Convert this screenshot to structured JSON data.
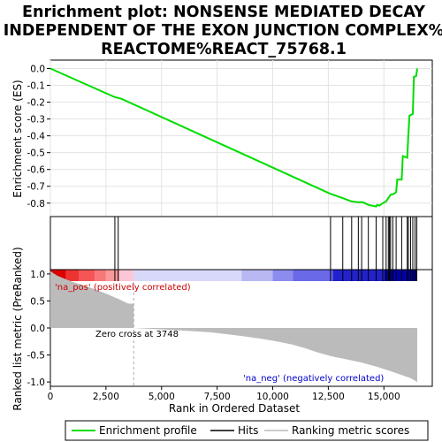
{
  "chart_data": {
    "type": "line",
    "title_lines": [
      "Enrichment plot: NONSENSE MEDIATED DECAY",
      "INDEPENDENT OF THE EXON JUNCTION COMPLEX%",
      "REACTOME%REACT_75768.1"
    ],
    "xlabel": "Rank in Ordered Dataset",
    "ylabel_top": "Enrichment score (ES)",
    "ylabel_bottom": "Ranked list metric (PreRanked)",
    "x_range": [
      0,
      16500
    ],
    "x_ticks": [
      0,
      2500,
      5000,
      7500,
      10000,
      12500,
      15000
    ],
    "x_tick_labels": [
      "0",
      "2,500",
      "5,000",
      "7,500",
      "10,000",
      "12,500",
      "15,000"
    ],
    "es_range": [
      -0.88,
      0.05
    ],
    "es_ticks": [
      0.0,
      -0.1,
      -0.2,
      -0.3,
      -0.4,
      -0.5,
      -0.6,
      -0.7,
      -0.8
    ],
    "es_tick_labels": [
      "0.0",
      "-0.1",
      "-0.2",
      "-0.3",
      "-0.4",
      "-0.5",
      "-0.6",
      "-0.7",
      "-0.8"
    ],
    "metric_range": [
      -1.08,
      1.08
    ],
    "metric_ticks": [
      1.0,
      0.5,
      0.0,
      -0.5,
      -1.0
    ],
    "metric_tick_labels": [
      "1.0",
      "0.5",
      "0.0",
      "-0.5",
      "-1.0"
    ],
    "enrichment_profile": [
      [
        0,
        0.0
      ],
      [
        2900,
        -0.17
      ],
      [
        3050,
        -0.175
      ],
      [
        3200,
        -0.18
      ],
      [
        12600,
        -0.745
      ],
      [
        13150,
        -0.77
      ],
      [
        13550,
        -0.79
      ],
      [
        13850,
        -0.795
      ],
      [
        14050,
        -0.795
      ],
      [
        14300,
        -0.81
      ],
      [
        14650,
        -0.82
      ],
      [
        14700,
        -0.81
      ],
      [
        14800,
        -0.815
      ],
      [
        14950,
        -0.8
      ],
      [
        15100,
        -0.79
      ],
      [
        15200,
        -0.77
      ],
      [
        15250,
        -0.76
      ],
      [
        15300,
        -0.75
      ],
      [
        15450,
        -0.745
      ],
      [
        15550,
        -0.735
      ],
      [
        15600,
        -0.66
      ],
      [
        15800,
        -0.66
      ],
      [
        15850,
        -0.52
      ],
      [
        16050,
        -0.53
      ],
      [
        16100,
        -0.4
      ],
      [
        16150,
        -0.28
      ],
      [
        16300,
        -0.27
      ],
      [
        16350,
        -0.05
      ],
      [
        16450,
        -0.045
      ],
      [
        16500,
        0.0
      ]
    ],
    "hits": [
      2900,
      3050,
      12600,
      13150,
      13550,
      13850,
      14000,
      14300,
      14650,
      14950,
      15100,
      15200,
      15250,
      15300,
      15400,
      15550,
      15800,
      16050,
      16100,
      16200,
      16300,
      16400,
      16480
    ],
    "ranked_metric": [
      [
        0,
        1.05
      ],
      [
        300,
        0.97
      ],
      [
        700,
        0.9
      ],
      [
        1100,
        0.84
      ],
      [
        1500,
        0.79
      ],
      [
        1900,
        0.73
      ],
      [
        2300,
        0.67
      ],
      [
        2700,
        0.6
      ],
      [
        3100,
        0.53
      ],
      [
        3500,
        0.45
      ],
      [
        3748,
        0.0
      ],
      [
        5600,
        -0.04
      ],
      [
        7200,
        -0.08
      ],
      [
        8000,
        -0.12
      ],
      [
        8800,
        -0.16
      ],
      [
        9500,
        -0.2
      ],
      [
        10200,
        -0.25
      ],
      [
        10900,
        -0.31
      ],
      [
        11500,
        -0.38
      ],
      [
        12000,
        -0.45
      ],
      [
        12600,
        -0.52
      ],
      [
        13300,
        -0.58
      ],
      [
        14000,
        -0.64
      ],
      [
        14700,
        -0.72
      ],
      [
        15300,
        -0.8
      ],
      [
        15800,
        -0.87
      ],
      [
        16200,
        -0.93
      ],
      [
        16500,
        -1.0
      ]
    ],
    "zero_cross_rank": 3748,
    "annotations": {
      "pos": "'na_pos' (positively correlated)",
      "neg": "'na_neg' (negatively correlated)",
      "zero_cross": "Zero cross at 3748"
    },
    "legend": [
      {
        "label": "Enrichment profile",
        "color": "#00dd00"
      },
      {
        "label": "Hits",
        "color": "#000000"
      },
      {
        "label": "Ranking metric scores",
        "color": "#bbbbbb"
      }
    ],
    "colors": {
      "profile": "#00dd00",
      "hits": "#000000",
      "metric_fill": "#bbbbbb",
      "zero_line": "#aaaaaa"
    },
    "color_bar": [
      {
        "from": 0,
        "to": 700,
        "color": "#dd0000"
      },
      {
        "from": 700,
        "to": 1300,
        "color": "#ee3333"
      },
      {
        "from": 1300,
        "to": 2000,
        "color": "#f55555"
      },
      {
        "from": 2000,
        "to": 2500,
        "color": "#f87777"
      },
      {
        "from": 2500,
        "to": 3100,
        "color": "#fa9999"
      },
      {
        "from": 3100,
        "to": 3748,
        "color": "#fcc6d6"
      },
      {
        "from": 3748,
        "to": 8600,
        "color": "#d8d8fa"
      },
      {
        "from": 8600,
        "to": 10000,
        "color": "#b8b8f2"
      },
      {
        "from": 10000,
        "to": 10900,
        "color": "#8c8cee"
      },
      {
        "from": 10900,
        "to": 12700,
        "color": "#6a6ae8"
      },
      {
        "from": 12700,
        "to": 15000,
        "color": "#2222cc"
      },
      {
        "from": 15000,
        "to": 16500,
        "color": "#0000aa"
      }
    ]
  }
}
